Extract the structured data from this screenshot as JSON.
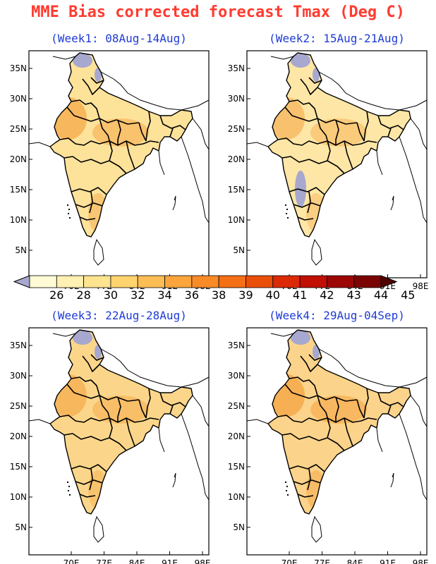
{
  "title": "MME Bias corrected forecast Tmax (Deg C)",
  "panels": [
    {
      "label": "(Week1: 08Aug-14Aug)",
      "base_color": "#fde29a",
      "hot_color": "#f7b55a",
      "cold_color": "#a6a8cf"
    },
    {
      "label": "(Week2: 15Aug-21Aug)",
      "base_color": "#fde6a6",
      "hot_color": "#f8bf6a",
      "cold_color": "#a6a8cf"
    },
    {
      "label": "(Week3: 22Aug-28Aug)",
      "base_color": "#fbd68a",
      "hot_color": "#f7b55a",
      "cold_color": "#a6a8cf"
    },
    {
      "label": "(Week4: 29Aug-04Sep)",
      "base_color": "#fbd38a",
      "hot_color": "#f6ad50",
      "cold_color": "#a6a8cf"
    }
  ],
  "x_ticks": [
    "70E",
    "77E",
    "84E",
    "91E",
    "98E"
  ],
  "y_ticks": [
    "35N",
    "30N",
    "25N",
    "20N",
    "15N",
    "10N",
    "5N"
  ],
  "colorbar": {
    "labels": [
      "26",
      "28",
      "30",
      "32",
      "34",
      "36",
      "38",
      "39",
      "40",
      "41",
      "42",
      "43",
      "44",
      "45"
    ],
    "colors": [
      "#a6a8cf",
      "#fffbd6",
      "#fff0b3",
      "#ffe48f",
      "#ffd36e",
      "#fdbd55",
      "#fba53c",
      "#f98b27",
      "#f46f15",
      "#ea4f0a",
      "#db2a05",
      "#c10f04",
      "#9c0604",
      "#7a0303",
      "#520000"
    ]
  }
}
